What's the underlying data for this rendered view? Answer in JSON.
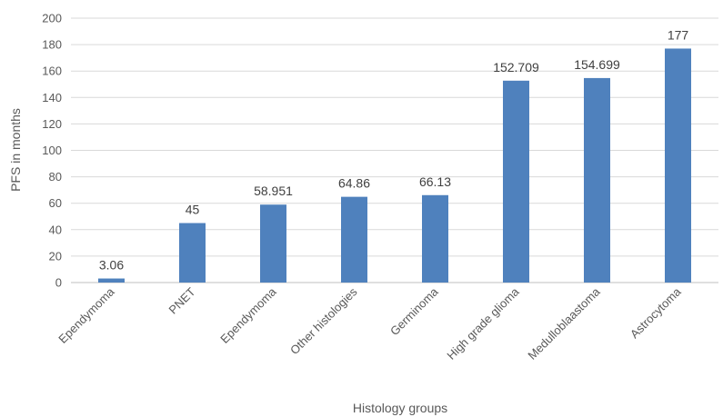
{
  "chart_data": {
    "type": "bar",
    "categories": [
      "Ependymoma",
      "PNET",
      "Ependymoma",
      "Other histologies",
      "Germinoma",
      "High grade glioma",
      "Medulloblaastoma",
      "Astrocytoma"
    ],
    "values": [
      3.06,
      45,
      58.951,
      64.86,
      66.13,
      152.709,
      154.699,
      177
    ],
    "data_labels": [
      "3.06",
      "45",
      "58.951",
      "64.86",
      "66.13",
      "152.709",
      "154.699",
      "177"
    ],
    "xlabel": "Histology groups",
    "ylabel": "PFS in months",
    "ylim": [
      0,
      200
    ],
    "yticks": [
      0,
      20,
      40,
      60,
      80,
      100,
      120,
      140,
      160,
      180,
      200
    ],
    "bar_color": "#4f81bd",
    "grid": true
  }
}
